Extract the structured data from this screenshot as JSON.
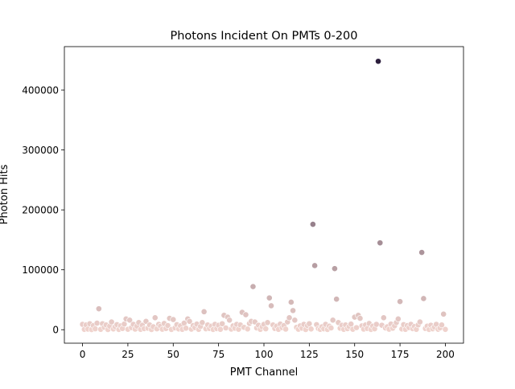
{
  "chart_data": {
    "type": "scatter",
    "title": "Photons Incident On PMTs 0-200",
    "xlabel": "PMT Channel",
    "ylabel": "Photon Hits",
    "xlim": [
      -10,
      210
    ],
    "ylim": [
      -22500,
      472500
    ],
    "xticks": [
      0,
      25,
      50,
      75,
      100,
      125,
      150,
      175,
      200
    ],
    "yticks": [
      0,
      100000,
      200000,
      300000,
      400000
    ],
    "grid": false,
    "legend": "none",
    "hue": {
      "low_color": "#f0d3cd",
      "high_color": "#2c1e3d",
      "min": 0,
      "max": 448000
    },
    "points": [
      [
        0,
        9000
      ],
      [
        1,
        500
      ],
      [
        2,
        8000
      ],
      [
        3,
        1000
      ],
      [
        4,
        10000
      ],
      [
        5,
        200
      ],
      [
        6,
        7000
      ],
      [
        7,
        1500
      ],
      [
        8,
        11000
      ],
      [
        9,
        35000
      ],
      [
        10,
        600
      ],
      [
        11,
        10000
      ],
      [
        12,
        4000
      ],
      [
        13,
        8000
      ],
      [
        14,
        300
      ],
      [
        15,
        6000
      ],
      [
        16,
        13000
      ],
      [
        17,
        1200
      ],
      [
        18,
        5000
      ],
      [
        19,
        8500
      ],
      [
        20,
        400
      ],
      [
        21,
        6500
      ],
      [
        22,
        2000
      ],
      [
        23,
        9500
      ],
      [
        24,
        18000
      ],
      [
        25,
        700
      ],
      [
        26,
        16000
      ],
      [
        27,
        3500
      ],
      [
        28,
        9000
      ],
      [
        29,
        1000
      ],
      [
        30,
        6000
      ],
      [
        31,
        12000
      ],
      [
        32,
        500
      ],
      [
        33,
        7500
      ],
      [
        34,
        1800
      ],
      [
        35,
        14000
      ],
      [
        36,
        2500
      ],
      [
        37,
        8000
      ],
      [
        38,
        300
      ],
      [
        39,
        5000
      ],
      [
        40,
        20000
      ],
      [
        41,
        1500
      ],
      [
        42,
        9000
      ],
      [
        43,
        6000
      ],
      [
        44,
        800
      ],
      [
        45,
        10500
      ],
      [
        46,
        2000
      ],
      [
        47,
        7000
      ],
      [
        48,
        19000
      ],
      [
        49,
        400
      ],
      [
        50,
        17000
      ],
      [
        51,
        3000
      ],
      [
        52,
        8500
      ],
      [
        53,
        1200
      ],
      [
        54,
        6500
      ],
      [
        55,
        500
      ],
      [
        56,
        11000
      ],
      [
        57,
        2500
      ],
      [
        58,
        18000
      ],
      [
        59,
        14000
      ],
      [
        60,
        900
      ],
      [
        61,
        7000
      ],
      [
        62,
        3500
      ],
      [
        63,
        9500
      ],
      [
        64,
        600
      ],
      [
        65,
        5500
      ],
      [
        66,
        12000
      ],
      [
        67,
        30000
      ],
      [
        68,
        1500
      ],
      [
        69,
        8000
      ],
      [
        70,
        2000
      ],
      [
        71,
        6000
      ],
      [
        72,
        400
      ],
      [
        73,
        9000
      ],
      [
        74,
        1800
      ],
      [
        75,
        7500
      ],
      [
        76,
        500
      ],
      [
        77,
        10000
      ],
      [
        78,
        24000
      ],
      [
        79,
        3000
      ],
      [
        80,
        21000
      ],
      [
        81,
        16000
      ],
      [
        82,
        1000
      ],
      [
        83,
        6500
      ],
      [
        84,
        2500
      ],
      [
        85,
        9000
      ],
      [
        86,
        700
      ],
      [
        87,
        8000
      ],
      [
        88,
        29000
      ],
      [
        89,
        4000
      ],
      [
        90,
        25000
      ],
      [
        91,
        1200
      ],
      [
        92,
        10500
      ],
      [
        93,
        14000
      ],
      [
        94,
        72000
      ],
      [
        95,
        13000
      ],
      [
        96,
        3000
      ],
      [
        97,
        7500
      ],
      [
        98,
        600
      ],
      [
        99,
        5000
      ],
      [
        100,
        9000
      ],
      [
        101,
        1500
      ],
      [
        102,
        12000
      ],
      [
        103,
        53000
      ],
      [
        104,
        40000
      ],
      [
        105,
        8000
      ],
      [
        106,
        2000
      ],
      [
        107,
        6000
      ],
      [
        108,
        500
      ],
      [
        109,
        9500
      ],
      [
        110,
        3500
      ],
      [
        111,
        7000
      ],
      [
        112,
        1000
      ],
      [
        113,
        13000
      ],
      [
        114,
        20000
      ],
      [
        115,
        46000
      ],
      [
        116,
        32000
      ],
      [
        117,
        16000
      ],
      [
        118,
        4000
      ],
      [
        119,
        800
      ],
      [
        120,
        6500
      ],
      [
        121,
        2500
      ],
      [
        122,
        9000
      ],
      [
        123,
        300
      ],
      [
        124,
        7000
      ],
      [
        125,
        10000
      ],
      [
        126,
        1200
      ],
      [
        127,
        176000
      ],
      [
        128,
        107000
      ],
      [
        129,
        8500
      ],
      [
        130,
        2000
      ],
      [
        131,
        600
      ],
      [
        132,
        5000
      ],
      [
        133,
        1500
      ],
      [
        134,
        9000
      ],
      [
        135,
        400
      ],
      [
        136,
        6000
      ],
      [
        137,
        3000
      ],
      [
        138,
        16000
      ],
      [
        139,
        102000
      ],
      [
        140,
        51000
      ],
      [
        141,
        12000
      ],
      [
        142,
        2500
      ],
      [
        143,
        7500
      ],
      [
        144,
        500
      ],
      [
        145,
        8000
      ],
      [
        146,
        1800
      ],
      [
        147,
        5500
      ],
      [
        148,
        9500
      ],
      [
        149,
        700
      ],
      [
        150,
        21000
      ],
      [
        151,
        3500
      ],
      [
        152,
        24000
      ],
      [
        153,
        19000
      ],
      [
        154,
        6500
      ],
      [
        155,
        1000
      ],
      [
        156,
        8000
      ],
      [
        157,
        2000
      ],
      [
        158,
        10500
      ],
      [
        159,
        400
      ],
      [
        160,
        6000
      ],
      [
        161,
        1500
      ],
      [
        162,
        9000
      ],
      [
        163,
        448000
      ],
      [
        164,
        145000
      ],
      [
        165,
        7500
      ],
      [
        166,
        20000
      ],
      [
        167,
        3000
      ],
      [
        168,
        5000
      ],
      [
        169,
        800
      ],
      [
        170,
        9500
      ],
      [
        171,
        2500
      ],
      [
        172,
        6500
      ],
      [
        173,
        12000
      ],
      [
        174,
        18000
      ],
      [
        175,
        47000
      ],
      [
        176,
        1200
      ],
      [
        177,
        8500
      ],
      [
        178,
        500
      ],
      [
        179,
        7000
      ],
      [
        180,
        3500
      ],
      [
        181,
        9000
      ],
      [
        182,
        1800
      ],
      [
        183,
        5500
      ],
      [
        184,
        600
      ],
      [
        185,
        8000
      ],
      [
        186,
        13000
      ],
      [
        187,
        129000
      ],
      [
        188,
        52000
      ],
      [
        189,
        2000
      ],
      [
        190,
        6000
      ],
      [
        191,
        400
      ],
      [
        192,
        7500
      ],
      [
        193,
        1500
      ],
      [
        194,
        4500
      ],
      [
        195,
        9000
      ],
      [
        196,
        700
      ],
      [
        197,
        3000
      ],
      [
        198,
        8000
      ],
      [
        199,
        26000
      ],
      [
        200,
        500
      ]
    ]
  }
}
